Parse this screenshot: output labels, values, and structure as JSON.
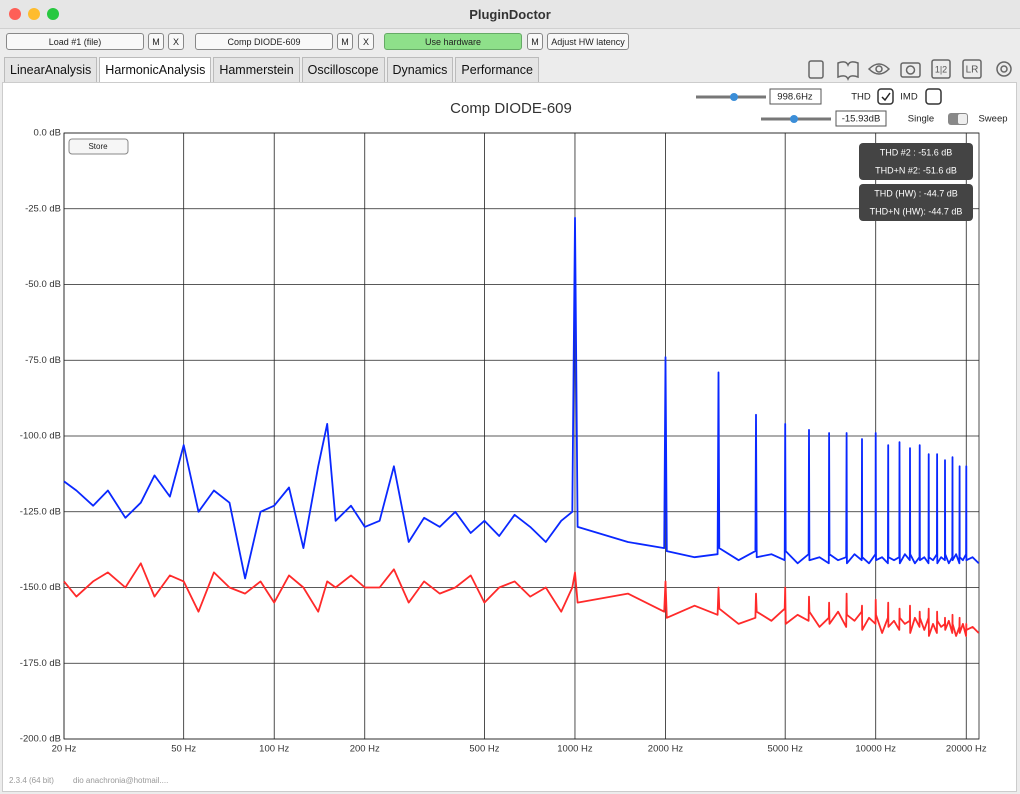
{
  "window": {
    "title": "PluginDoctor"
  },
  "toolbar": {
    "buttons": [
      "Load #1 (file)",
      "M",
      "X",
      "Comp DIODE-609",
      "M",
      "X",
      "Use hardware",
      "M",
      "Adjust HW latency"
    ]
  },
  "tabs": [
    "LinearAnalysis",
    "HarmonicAnalysis",
    "Hammerstein",
    "Oscilloscope",
    "Dynamics",
    "Performance"
  ],
  "icons": [
    "1|2",
    "LR"
  ],
  "controls": {
    "frequency": "998.6Hz",
    "thd": "THD",
    "imd": "IMD",
    "level": "-15.93dB",
    "single": "Single",
    "sweep": "Sweep",
    "store": "Store"
  },
  "readouts": [
    "THD #2 : -51.6 dB",
    "THD+N #2: -51.6 dB",
    "THD (HW) : -44.7 dB",
    "THD+N (HW): -44.7 dB"
  ],
  "footer": {
    "version": "2.3.4 (64 bit)",
    "user": "dio anachronia@hotmail...."
  },
  "chart_data": {
    "type": "line",
    "title": "Comp DIODE-609",
    "x_scale": "log",
    "grid": true,
    "xlim": [
      20,
      22050
    ],
    "xticks": [
      {
        "value": 20,
        "label": "20 Hz"
      },
      {
        "value": 50,
        "label": "50 Hz"
      },
      {
        "value": 100,
        "label": "100 Hz"
      },
      {
        "value": 200,
        "label": "200 Hz"
      },
      {
        "value": 500,
        "label": "500 Hz"
      },
      {
        "value": 1000,
        "label": "1000 Hz"
      },
      {
        "value": 2000,
        "label": "2000 Hz"
      },
      {
        "value": 5000,
        "label": "5000 Hz"
      },
      {
        "value": 10000,
        "label": "10000 Hz"
      },
      {
        "value": 20000,
        "label": "20000 Hz"
      }
    ],
    "ylim": [
      -200,
      0
    ],
    "yticks": [
      {
        "value": 0,
        "label": "0.0 dB"
      },
      {
        "value": -25,
        "label": "-25.0 dB"
      },
      {
        "value": -50,
        "label": "-50.0 dB"
      },
      {
        "value": -75,
        "label": "-75.0 dB"
      },
      {
        "value": -100,
        "label": "-100.0 dB"
      },
      {
        "value": -125,
        "label": "-125.0 dB"
      },
      {
        "value": -150,
        "label": "-150.0 dB"
      },
      {
        "value": -175,
        "label": "-175.0 dB"
      },
      {
        "value": -200,
        "label": "-200.0 dB"
      }
    ],
    "x": [
      20,
      22,
      25,
      28,
      32,
      36,
      40,
      45,
      50,
      56,
      63,
      71,
      80,
      90,
      100,
      112,
      125,
      140,
      150,
      160,
      180,
      200,
      224,
      250,
      280,
      315,
      355,
      400,
      450,
      500,
      560,
      630,
      710,
      800,
      900,
      980,
      1000,
      1020,
      1500,
      1980,
      2000,
      2020,
      2500,
      2980,
      3000,
      3020,
      3500,
      3980,
      4000,
      4020,
      4500,
      4980,
      5000,
      5020,
      5500,
      5980,
      6000,
      6020,
      6500,
      6980,
      7000,
      7020,
      7500,
      7980,
      8000,
      8020,
      8500,
      8980,
      9000,
      9020,
      9500,
      9980,
      10000,
      10020,
      10500,
      10980,
      11000,
      11020,
      11500,
      11980,
      12000,
      12020,
      12500,
      12980,
      13000,
      13020,
      13500,
      13980,
      14000,
      14020,
      14500,
      14980,
      15000,
      15020,
      15500,
      15980,
      16000,
      16020,
      16500,
      16980,
      17000,
      17020,
      17500,
      17980,
      18000,
      18020,
      18500,
      18980,
      19000,
      19020,
      19500,
      19980,
      20000,
      20020,
      21000,
      22000
    ],
    "series": [
      {
        "color": "#0a28ff",
        "values": [
          -115,
          -118,
          -123,
          -118,
          -127,
          -122,
          -113,
          -120,
          -103,
          -125,
          -118,
          -122,
          -147,
          -125,
          -123,
          -117,
          -137,
          -110,
          -96,
          -128,
          -123,
          -130,
          -128,
          -110,
          -135,
          -127,
          -130,
          -125,
          -132,
          -128,
          -133,
          -126,
          -130,
          -135,
          -128,
          -125,
          -28,
          -130,
          -135,
          -137,
          -74,
          -138,
          -140,
          -139,
          -79,
          -137,
          -141,
          -138,
          -93,
          -140,
          -139,
          -141,
          -96,
          -138,
          -142,
          -139,
          -98,
          -141,
          -140,
          -142,
          -99,
          -139,
          -141,
          -140,
          -99,
          -142,
          -139,
          -141,
          -101,
          -140,
          -142,
          -139,
          -99,
          -141,
          -140,
          -142,
          -103,
          -140,
          -141,
          -140,
          -102,
          -142,
          -139,
          -141,
          -104,
          -139,
          -142,
          -140,
          -103,
          -141,
          -140,
          -142,
          -106,
          -140,
          -141,
          -139,
          -106,
          -142,
          -140,
          -141,
          -108,
          -139,
          -142,
          -140,
          -107,
          -141,
          -139,
          -142,
          -110,
          -140,
          -141,
          -139,
          -110,
          -141,
          -140,
          -142
        ]
      },
      {
        "color": "#ff2a2a",
        "values": [
          -148,
          -153,
          -148,
          -145,
          -150,
          -142,
          -153,
          -146,
          -148,
          -158,
          -145,
          -150,
          -152,
          -148,
          -155,
          -146,
          -150,
          -158,
          -148,
          -150,
          -146,
          -150,
          -150,
          -144,
          -155,
          -148,
          -152,
          -150,
          -146,
          -155,
          -150,
          -148,
          -153,
          -150,
          -158,
          -150,
          -145,
          -155,
          -152,
          -158,
          -148,
          -160,
          -156,
          -159,
          -150,
          -157,
          -162,
          -160,
          -152,
          -158,
          -161,
          -157,
          -150,
          -162,
          -159,
          -161,
          -153,
          -158,
          -163,
          -160,
          -155,
          -162,
          -158,
          -163,
          -152,
          -159,
          -161,
          -158,
          -156,
          -164,
          -160,
          -162,
          -154,
          -159,
          -165,
          -160,
          -155,
          -163,
          -161,
          -164,
          -157,
          -160,
          -162,
          -161,
          -156,
          -165,
          -160,
          -163,
          -158,
          -160,
          -164,
          -160,
          -157,
          -166,
          -162,
          -165,
          -158,
          -161,
          -163,
          -162,
          -160,
          -164,
          -161,
          -165,
          -159,
          -162,
          -166,
          -163,
          -160,
          -165,
          -162,
          -166,
          -162,
          -164,
          -163,
          -165
        ]
      }
    ]
  }
}
